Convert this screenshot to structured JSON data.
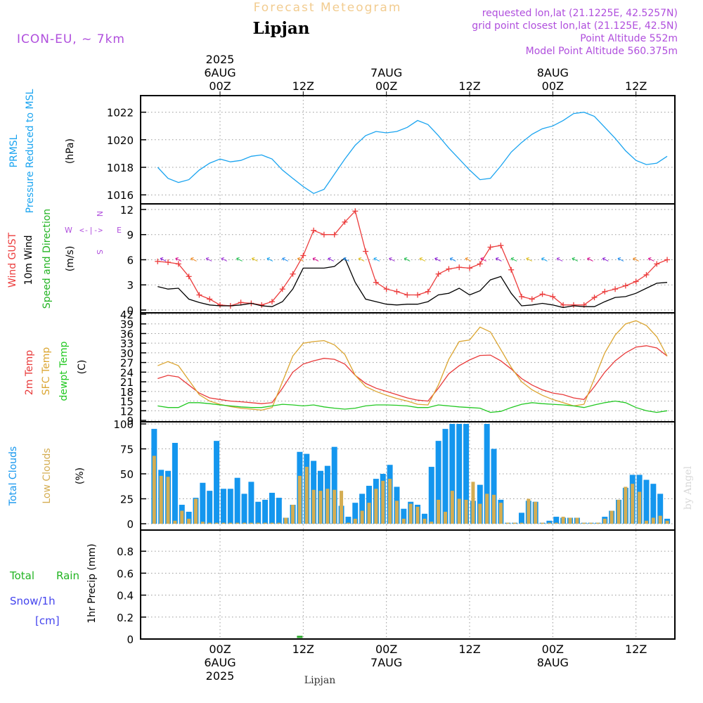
{
  "header": {
    "banner": "Forecast Meteogram",
    "location": "Lipjan",
    "model": "ICON-EU, ~ 7km",
    "requested": "requested lon,lat (21.1225E, 42.5257N)",
    "grid_point": "grid point closest lon,lat (21.125E, 42.5N)",
    "point_altitude": "Point Altitude 552m",
    "model_altitude": "Model Point Altitude 560.375m"
  },
  "footer": {
    "location": "Lipjan",
    "credit": "by Angel"
  },
  "time_axis": {
    "top_labels": [
      [
        "2025",
        "6AUG",
        "00Z"
      ],
      [
        "",
        "",
        "12Z"
      ],
      [
        "",
        "7AUG",
        "00Z"
      ],
      [
        "",
        "",
        "12Z"
      ],
      [
        "",
        "8AUG",
        "00Z"
      ],
      [
        "",
        "",
        "12Z"
      ]
    ],
    "bottom_labels": [
      [
        "00Z",
        "6AUG",
        "2025"
      ],
      [
        "12Z",
        "",
        ""
      ],
      [
        "00Z",
        "7AUG",
        ""
      ],
      [
        "12Z",
        "",
        ""
      ],
      [
        "00Z",
        "8AUG",
        ""
      ],
      [
        "12Z",
        "",
        ""
      ]
    ]
  },
  "panel_labels": {
    "pressure": {
      "line1": "PRMSL",
      "line2": "Pressure Reduced to MSL",
      "unit": "(hPa)"
    },
    "wind": {
      "gust": "Wind GUST",
      "wind10": "10m Wind",
      "speed_dir": "Speed and Direction",
      "unit": "(m/s)",
      "compass_w": "W",
      "compass_e": "E",
      "compass_n": "N",
      "compass_s": "S"
    },
    "temp": {
      "t2m": "2m Temp",
      "sfc": "SFC Temp",
      "dewpt": "dewpt Temp",
      "unit": "(C)"
    },
    "clouds": {
      "total": "Total Clouds",
      "low": "Low Clouds",
      "unit": "(%)"
    },
    "precip": {
      "total": "Total",
      "rain": "Rain",
      "snow": "Snow/1h",
      "snow_unit": "[cm]",
      "unit": "1hr Precip (mm)"
    }
  },
  "colors": {
    "pressure": "#1aa4f0",
    "gust": "#ec3d3d",
    "wind10": "#000000",
    "wind_green": "#22b422",
    "t2m": "#e83a3a",
    "sfc": "#dba531",
    "dewpt": "#22c822",
    "total_cloud": "#1496ee",
    "low_cloud": "#d4ad52",
    "rain": "#22a822",
    "header_purple": "#b04fdd",
    "banner": "#f2cc90",
    "snow_blue": "#4444ee"
  },
  "chart_data": [
    {
      "type": "line",
      "title": "Pressure Reduced to MSL",
      "ylabel": "(hPa)",
      "ylim": [
        1015.5,
        1023
      ],
      "yticks": [
        1016,
        1018,
        1020,
        1022
      ],
      "x_hours": [
        -9,
        -7.5,
        -6,
        -4.5,
        -3,
        -1.5,
        0,
        1.5,
        3,
        4.5,
        6,
        7.5,
        9,
        10.5,
        12,
        13.5,
        15,
        16.5,
        18,
        19.5,
        21,
        22.5,
        24,
        25.5,
        27,
        28.5,
        30,
        31.5,
        33,
        34.5,
        36,
        37.5,
        39,
        40.5,
        42,
        43.5,
        45,
        46.5,
        48,
        49.5,
        51,
        52.5,
        54,
        55.5,
        57,
        58.5,
        60,
        61.5,
        63,
        64.5
      ],
      "series": [
        {
          "name": "PRMSL",
          "values": [
            1018.0,
            1017.2,
            1016.9,
            1017.1,
            1017.8,
            1018.3,
            1018.6,
            1018.4,
            1018.5,
            1018.8,
            1018.9,
            1018.6,
            1017.8,
            1017.2,
            1016.6,
            1016.1,
            1016.4,
            1017.5,
            1018.6,
            1019.6,
            1020.3,
            1020.6,
            1020.5,
            1020.6,
            1020.9,
            1021.4,
            1021.1,
            1020.3,
            1019.4,
            1018.6,
            1017.8,
            1017.1,
            1017.2,
            1018.1,
            1019.1,
            1019.8,
            1020.4,
            1020.8,
            1021.0,
            1021.4,
            1021.9,
            1022.0,
            1021.7,
            1020.9,
            1020.1,
            1019.2,
            1018.5,
            1018.2,
            1018.3,
            1018.8
          ]
        }
      ]
    },
    {
      "type": "line",
      "title": "Wind GUST / 10m Wind Speed and Direction",
      "ylabel": "(m/s)",
      "ylim": [
        0,
        12.5
      ],
      "yticks": [
        0,
        3,
        6,
        9,
        12
      ],
      "x_hours": [
        -9,
        -7.5,
        -6,
        -4.5,
        -3,
        -1.5,
        0,
        1.5,
        3,
        4.5,
        6,
        7.5,
        9,
        10.5,
        12,
        13.5,
        15,
        16.5,
        18,
        19.5,
        21,
        22.5,
        24,
        25.5,
        27,
        28.5,
        30,
        31.5,
        33,
        34.5,
        36,
        37.5,
        39,
        40.5,
        42,
        43.5,
        45,
        46.5,
        48,
        49.5,
        51,
        52.5,
        54,
        55.5,
        57,
        58.5,
        60,
        61.5,
        63,
        64.5
      ],
      "series": [
        {
          "name": "Wind GUST",
          "values": [
            5.8,
            5.7,
            5.5,
            4.0,
            1.8,
            1.3,
            0.6,
            0.5,
            0.9,
            0.8,
            0.6,
            1.0,
            2.5,
            4.3,
            6.5,
            9.5,
            9.0,
            9.0,
            10.5,
            11.8,
            7.0,
            3.3,
            2.5,
            2.2,
            1.8,
            1.8,
            2.2,
            4.3,
            4.9,
            5.1,
            5.0,
            5.5,
            7.5,
            7.7,
            4.8,
            1.6,
            1.3,
            1.9,
            1.6,
            0.6,
            0.6,
            0.6,
            1.5,
            2.2,
            2.5,
            2.9,
            3.4,
            4.2,
            5.5,
            6.0
          ]
        },
        {
          "name": "10m Wind",
          "values": [
            2.8,
            2.5,
            2.6,
            1.3,
            0.9,
            0.6,
            0.5,
            0.5,
            0.6,
            0.8,
            0.5,
            0.4,
            1.0,
            2.5,
            5.0,
            5.0,
            5.0,
            5.2,
            6.2,
            3.3,
            1.3,
            1.0,
            0.7,
            0.6,
            0.7,
            0.7,
            1.0,
            1.8,
            2.0,
            2.6,
            1.8,
            2.3,
            3.6,
            4.0,
            2.0,
            0.5,
            0.6,
            0.8,
            0.6,
            0.3,
            0.5,
            0.4,
            0.4,
            1.0,
            1.5,
            1.6,
            2.0,
            2.6,
            3.2,
            3.3
          ]
        }
      ]
    },
    {
      "type": "line",
      "title": "2m Temp / SFC Temp / dewpt Temp",
      "ylabel": "(C)",
      "ylim": [
        9,
        42
      ],
      "yticks": [
        9,
        12,
        15,
        18,
        21,
        24,
        27,
        30,
        33,
        36,
        39,
        42
      ],
      "x_hours": [
        -9,
        -7.5,
        -6,
        -4.5,
        -3,
        -1.5,
        0,
        1.5,
        3,
        4.5,
        6,
        7.5,
        9,
        10.5,
        12,
        13.5,
        15,
        16.5,
        18,
        19.5,
        21,
        22.5,
        24,
        25.5,
        27,
        28.5,
        30,
        31.5,
        33,
        34.5,
        36,
        37.5,
        39,
        40.5,
        42,
        43.5,
        45,
        46.5,
        48,
        49.5,
        51,
        52.5,
        54,
        55.5,
        57,
        58.5,
        60,
        61.5,
        63,
        64.5
      ],
      "series": [
        {
          "name": "2m Temp",
          "values": [
            22.0,
            23.0,
            22.5,
            20.0,
            17.5,
            16.0,
            15.5,
            15.0,
            14.8,
            14.5,
            14.2,
            14.5,
            19.0,
            24.0,
            26.5,
            27.5,
            28.3,
            28.0,
            26.5,
            23.0,
            20.5,
            19.0,
            18.0,
            17.0,
            16.0,
            15.3,
            15.0,
            19.0,
            23.5,
            26.0,
            27.8,
            29.2,
            29.3,
            27.5,
            25.0,
            22.0,
            20.0,
            18.5,
            17.5,
            17.0,
            16.0,
            15.5,
            19.5,
            24.0,
            27.5,
            30.0,
            31.8,
            32.2,
            31.5,
            29.0
          ]
        },
        {
          "name": "SFC Temp",
          "values": [
            26.0,
            27.3,
            26.0,
            21.5,
            17.0,
            15.0,
            14.0,
            13.3,
            12.8,
            12.5,
            12.2,
            13.0,
            21.0,
            29.0,
            33.0,
            33.5,
            33.8,
            32.5,
            29.5,
            23.0,
            19.5,
            18.0,
            16.8,
            15.8,
            15.0,
            14.0,
            13.8,
            20.0,
            28.0,
            33.5,
            34.0,
            38.0,
            36.5,
            31.0,
            25.5,
            21.0,
            18.5,
            16.8,
            15.5,
            14.5,
            13.5,
            14.0,
            22.0,
            30.0,
            35.5,
            39.0,
            40.0,
            38.5,
            35.0,
            29.0
          ]
        },
        {
          "name": "dewpt Temp",
          "values": [
            13.5,
            13.0,
            13.0,
            14.5,
            14.5,
            14.2,
            13.8,
            13.5,
            13.2,
            13.0,
            13.0,
            13.5,
            14.0,
            13.8,
            13.5,
            13.8,
            13.2,
            12.8,
            12.5,
            12.8,
            13.5,
            13.8,
            13.8,
            13.7,
            13.5,
            13.0,
            13.0,
            13.8,
            13.5,
            13.2,
            13.0,
            12.8,
            11.5,
            11.8,
            13.0,
            14.0,
            14.5,
            14.2,
            14.0,
            13.8,
            13.5,
            13.0,
            13.8,
            14.5,
            15.0,
            14.5,
            13.0,
            12.0,
            11.5,
            12.0
          ]
        }
      ]
    },
    {
      "type": "bar",
      "title": "Total Clouds / Low Clouds",
      "ylabel": "(%)",
      "ylim": [
        0,
        100
      ],
      "yticks": [
        0,
        25,
        50,
        75,
        100
      ],
      "x_hours": [
        -9.5,
        -8.5,
        -7.5,
        -6.5,
        -5.5,
        -4.5,
        -3.5,
        -2.5,
        -1.5,
        -0.5,
        0.5,
        1.5,
        2.5,
        3.5,
        4.5,
        5.5,
        6.5,
        7.5,
        8.5,
        9.5,
        10.5,
        11.5,
        12.5,
        13.5,
        14.5,
        15.5,
        16.5,
        17.5,
        18.5,
        19.5,
        20.5,
        21.5,
        22.5,
        23.5,
        24.5,
        25.5,
        26.5,
        27.5,
        28.5,
        29.5,
        30.5,
        31.5,
        32.5,
        33.5,
        34.5,
        35.5,
        36.5,
        37.5,
        38.5,
        39.5,
        40.5,
        41.5,
        42.5,
        43.5,
        44.5,
        45.5,
        46.5,
        47.5,
        48.5,
        49.5,
        50.5,
        51.5,
        52.5,
        53.5,
        54.5,
        55.5,
        56.5,
        57.5,
        58.5,
        59.5,
        60.5,
        61.5,
        62.5,
        63.5,
        64.5
      ],
      "series": [
        {
          "name": "Total Clouds",
          "values": [
            95,
            54,
            53,
            81,
            19,
            12,
            26,
            41,
            33,
            83,
            35,
            35,
            46,
            30,
            42,
            22,
            24,
            31,
            26,
            6,
            19,
            72,
            70,
            63,
            53,
            58,
            77,
            18,
            7,
            21,
            30,
            38,
            45,
            50,
            59,
            37,
            15,
            22,
            19,
            10,
            57,
            83,
            95,
            100,
            100,
            100,
            23,
            39,
            100,
            75,
            24,
            1,
            1,
            11,
            23,
            22,
            1,
            3,
            7,
            6,
            6,
            6,
            1,
            1,
            1,
            7,
            13,
            24,
            36,
            49,
            49,
            44,
            40,
            30,
            5
          ]
        },
        {
          "name": "Low Clouds",
          "values": [
            68,
            48,
            47,
            3,
            13,
            5,
            25,
            2,
            1,
            1,
            1,
            1,
            1,
            1,
            1,
            1,
            1,
            1,
            1,
            6,
            19,
            48,
            57,
            34,
            33,
            35,
            34,
            33,
            1,
            5,
            13,
            21,
            35,
            43,
            45,
            23,
            5,
            20,
            17,
            5,
            2,
            24,
            12,
            33,
            25,
            24,
            42,
            20,
            30,
            29,
            21,
            1,
            1,
            1,
            25,
            22,
            1,
            1,
            1,
            7,
            6,
            6,
            1,
            1,
            1,
            5,
            13,
            24,
            37,
            40,
            32,
            3,
            6,
            8,
            3
          ]
        }
      ]
    },
    {
      "type": "bar",
      "title": "1hr Precip",
      "ylabel": "1hr Precip (mm)",
      "ylim": [
        0,
        0.98
      ],
      "yticks": [
        0,
        0.2,
        0.4,
        0.6,
        0.8
      ],
      "x_hours": [
        11.5
      ],
      "series": [
        {
          "name": "Total Rain",
          "values": [
            0.01
          ]
        }
      ]
    }
  ]
}
